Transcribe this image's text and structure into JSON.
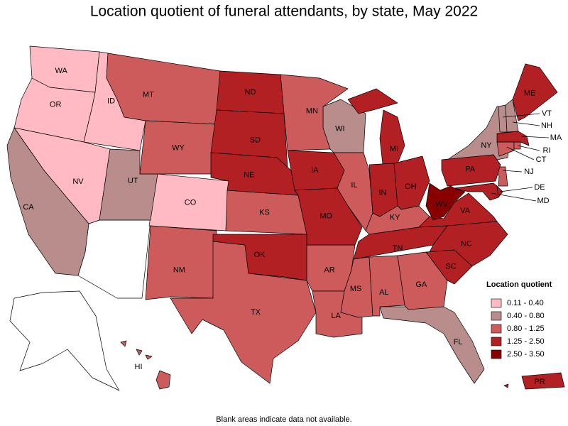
{
  "title": "Location quotient of funeral attendants, by state, May 2022",
  "footnote": "Blank areas indicate data not available.",
  "legend": {
    "title": "Location quotient",
    "items": [
      {
        "label": "0.11 - 0.40",
        "color": "#ffbac4"
      },
      {
        "label": "0.40 - 0.80",
        "color": "#b88d8b"
      },
      {
        "label": "0.80 - 1.25",
        "color": "#cd5b5b"
      },
      {
        "label": "1.25 - 2.50",
        "color": "#b22024"
      },
      {
        "label": "2.50 - 3.50",
        "color": "#880000"
      }
    ]
  },
  "states": [
    {
      "label": "WA",
      "legend_index": 0
    },
    {
      "label": "OR",
      "legend_index": 0
    },
    {
      "label": "ID",
      "legend_index": 0
    },
    {
      "label": "NV",
      "legend_index": 0
    },
    {
      "label": "CO",
      "legend_index": 0
    },
    {
      "label": "CA",
      "legend_index": 1
    },
    {
      "label": "UT",
      "legend_index": 1
    },
    {
      "label": "WI",
      "legend_index": 1
    },
    {
      "label": "NY",
      "legend_index": 1
    },
    {
      "label": "VT",
      "legend_index": 1
    },
    {
      "label": "NH",
      "legend_index": 1
    },
    {
      "label": "FL",
      "legend_index": 1
    },
    {
      "label": "MT",
      "legend_index": 2
    },
    {
      "label": "WY",
      "legend_index": 2
    },
    {
      "label": "MN",
      "legend_index": 2
    },
    {
      "label": "NM",
      "legend_index": 2
    },
    {
      "label": "KS",
      "legend_index": 2
    },
    {
      "label": "TX",
      "legend_index": 2
    },
    {
      "label": "IL",
      "legend_index": 2
    },
    {
      "label": "KY",
      "legend_index": 2
    },
    {
      "label": "AR",
      "legend_index": 2
    },
    {
      "label": "LA",
      "legend_index": 2
    },
    {
      "label": "MS",
      "legend_index": 2
    },
    {
      "label": "AL",
      "legend_index": 2
    },
    {
      "label": "GA",
      "legend_index": 2
    },
    {
      "label": "HI",
      "legend_index": 2
    },
    {
      "label": "CT",
      "legend_index": 2
    },
    {
      "label": "NJ",
      "legend_index": 2
    },
    {
      "label": "RI",
      "legend_index": 2
    },
    {
      "label": "ND",
      "legend_index": 3
    },
    {
      "label": "SD",
      "legend_index": 3
    },
    {
      "label": "NE",
      "legend_index": 3
    },
    {
      "label": "IA",
      "legend_index": 3
    },
    {
      "label": "MO",
      "legend_index": 3
    },
    {
      "label": "OK",
      "legend_index": 3
    },
    {
      "label": "MI",
      "legend_index": 3
    },
    {
      "label": "IN",
      "legend_index": 3
    },
    {
      "label": "OH",
      "legend_index": 3
    },
    {
      "label": "PA",
      "legend_index": 3
    },
    {
      "label": "VA",
      "legend_index": 3
    },
    {
      "label": "NC",
      "legend_index": 3
    },
    {
      "label": "SC",
      "legend_index": 3
    },
    {
      "label": "TN",
      "legend_index": 3
    },
    {
      "label": "ME",
      "legend_index": 3
    },
    {
      "label": "MA",
      "legend_index": 3
    },
    {
      "label": "MD",
      "legend_index": 3
    },
    {
      "label": "DE",
      "legend_index": 3
    },
    {
      "label": "PR",
      "legend_index": 3
    },
    {
      "label": "WV",
      "legend_index": 4
    }
  ]
}
